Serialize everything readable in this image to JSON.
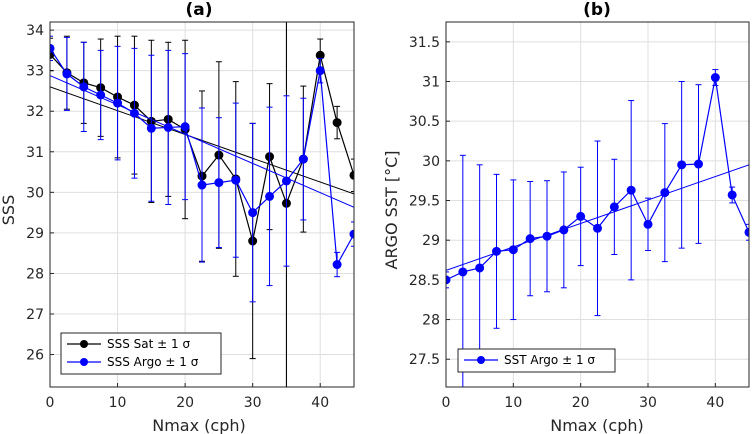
{
  "chart_data": [
    {
      "type": "line",
      "panel_title": "(a)",
      "xlabel": "Nmax (cph)",
      "ylabel": "SSS",
      "xlim": [
        0,
        45
      ],
      "ylim": [
        25.2,
        34.2
      ],
      "xticks": [
        0,
        10,
        20,
        30,
        40
      ],
      "yticks": [
        26,
        27,
        28,
        29,
        30,
        31,
        32,
        33,
        34
      ],
      "x": [
        0,
        2.5,
        5,
        7.5,
        10,
        12.5,
        15,
        17.5,
        20,
        22.5,
        25,
        27.5,
        30,
        32.5,
        35,
        37.5,
        40,
        42.5,
        45
      ],
      "grid": true,
      "legend_position": "bottom-left",
      "vline_x": 35,
      "series": [
        {
          "name": "SSS Sat ± 1 σ",
          "color": "#000000",
          "values": [
            33.4,
            32.95,
            32.7,
            32.58,
            32.35,
            32.15,
            31.75,
            31.8,
            31.55,
            30.4,
            30.92,
            30.33,
            28.8,
            30.88,
            29.73,
            30.82,
            33.38,
            31.72,
            30.42
          ],
          "errors": [
            0.4,
            0.9,
            1.0,
            1.2,
            1.5,
            1.7,
            2.0,
            1.9,
            2.2,
            2.1,
            2.3,
            2.4,
            2.9,
            1.8,
            5.8,
            1.8,
            0.4,
            0.4,
            0.4
          ],
          "trend": [
            32.6,
            29.96
          ]
        },
        {
          "name": "SSS Argo ± 1 σ",
          "color": "#0000ff",
          "values": [
            33.55,
            32.92,
            32.6,
            32.4,
            32.2,
            31.95,
            31.58,
            31.6,
            31.62,
            30.18,
            30.24,
            30.3,
            29.5,
            29.9,
            30.28,
            30.82,
            33.0,
            28.22,
            28.97
          ],
          "errors": [
            0.3,
            0.9,
            1.1,
            1.1,
            1.4,
            1.6,
            1.8,
            1.9,
            1.8,
            1.9,
            1.6,
            1.9,
            2.2,
            2.2,
            2.1,
            1.5,
            0.3,
            0.3,
            0.3
          ],
          "trend": [
            32.88,
            29.63
          ]
        }
      ]
    },
    {
      "type": "line",
      "panel_title": "(b)",
      "xlabel": "Nmax (cph)",
      "ylabel": "ARGO SST [°C]",
      "xlim": [
        0,
        45
      ],
      "ylim": [
        27.15,
        31.75
      ],
      "xticks": [
        0,
        10,
        20,
        30,
        40
      ],
      "yticks": [
        27.5,
        28,
        28.5,
        29,
        29.5,
        30,
        30.5,
        31,
        31.5
      ],
      "x": [
        0,
        2.5,
        5,
        7.5,
        10,
        12.5,
        15,
        17.5,
        20,
        22.5,
        25,
        27.5,
        30,
        32.5,
        35,
        37.5,
        40,
        42.5,
        45
      ],
      "grid": true,
      "legend_position": "bottom-left",
      "series": [
        {
          "name": "SST Argo ± 1 σ",
          "color": "#0000ff",
          "values": [
            28.5,
            28.6,
            28.65,
            28.86,
            28.88,
            29.02,
            29.05,
            29.13,
            29.3,
            29.15,
            29.42,
            29.63,
            29.2,
            29.6,
            29.95,
            29.96,
            31.05,
            29.57,
            29.1
          ],
          "errors": [
            0.1,
            1.47,
            1.3,
            0.97,
            0.88,
            0.72,
            0.7,
            0.73,
            0.62,
            1.1,
            0.6,
            1.13,
            0.33,
            0.87,
            1.05,
            1.0,
            0.1,
            0.1,
            0.1
          ],
          "trend": [
            28.62,
            29.95
          ]
        }
      ]
    }
  ]
}
